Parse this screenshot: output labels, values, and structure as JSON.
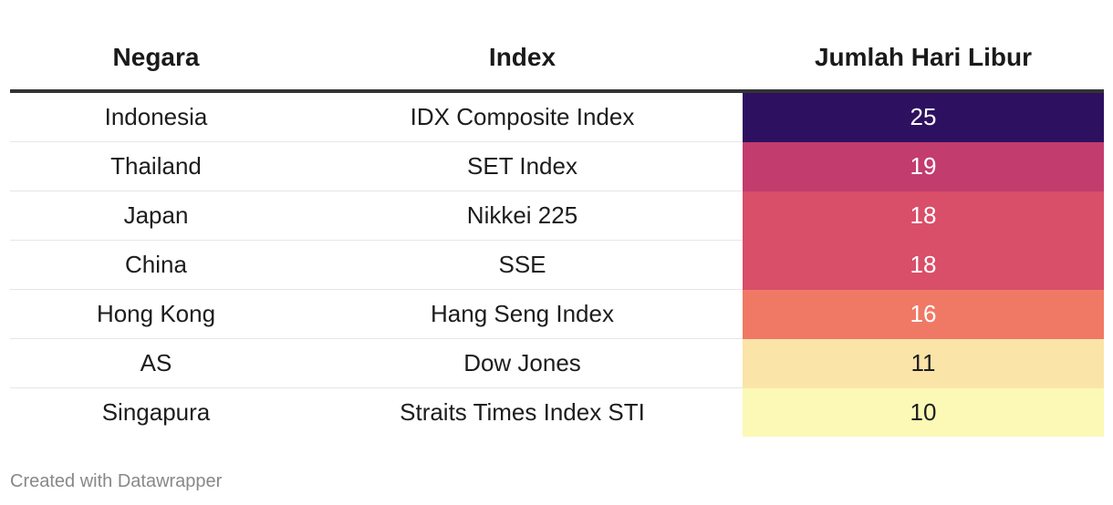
{
  "chart_data": {
    "type": "table",
    "columns": [
      "Negara",
      "Index",
      "Jumlah Hari Libur"
    ],
    "rows": [
      {
        "country": "Indonesia",
        "index": "IDX Composite Index",
        "holidays": 25
      },
      {
        "country": "Thailand",
        "index": "SET Index",
        "holidays": 19
      },
      {
        "country": "Japan",
        "index": "Nikkei 225",
        "holidays": 18
      },
      {
        "country": "China",
        "index": "SSE",
        "holidays": 18
      },
      {
        "country": "Hong Kong",
        "index": "Hang Seng Index",
        "holidays": 16
      },
      {
        "country": "AS",
        "index": "Dow Jones",
        "holidays": 11
      },
      {
        "country": "Singapura",
        "index": "Straits Times Index STI",
        "holidays": 10
      }
    ],
    "heatmap_colors": {
      "25": "#2d1160",
      "19": "#c23c6e",
      "18": "#d94e68",
      "16": "#f07966",
      "11": "#fbe4a8",
      "10": "#fbf9b5"
    }
  },
  "footer": {
    "credit": "Created with Datawrapper"
  }
}
